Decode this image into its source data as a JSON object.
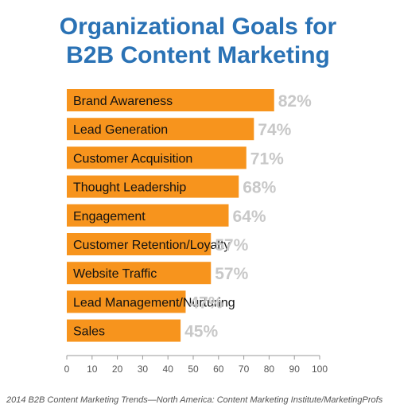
{
  "title_lines": [
    "Organizational Goals for",
    "B2B Content Marketing"
  ],
  "source": "2014 B2B Content Marketing Trends—North America: Content Marketing Institute/MarketingProfs",
  "colors": {
    "title": "#2a72b5",
    "bar": "#f7941d",
    "value_label": "#c8c8c8",
    "axis": "#9a9a9a",
    "text": "#111111"
  },
  "chart_data": {
    "type": "bar",
    "orientation": "horizontal",
    "title": "Organizational Goals for B2B Content Marketing",
    "categories": [
      "Brand Awareness",
      "Lead Generation",
      "Customer Acquisition",
      "Thought Leadership",
      "Engagement",
      "Customer Retention/Loyalty",
      "Website Traffic",
      "Lead Management/Nurturing",
      "Sales"
    ],
    "values": [
      82,
      74,
      71,
      68,
      64,
      57,
      57,
      47,
      45
    ],
    "value_labels": [
      "82%",
      "74%",
      "71%",
      "68%",
      "64%",
      "57%",
      "57%",
      "47%",
      "45%"
    ],
    "xlim": [
      0,
      100
    ],
    "xticks": [
      0,
      10,
      20,
      30,
      40,
      50,
      60,
      70,
      80,
      90,
      100
    ],
    "xlabel": "",
    "ylabel": "",
    "grid": false,
    "legend": "none"
  }
}
